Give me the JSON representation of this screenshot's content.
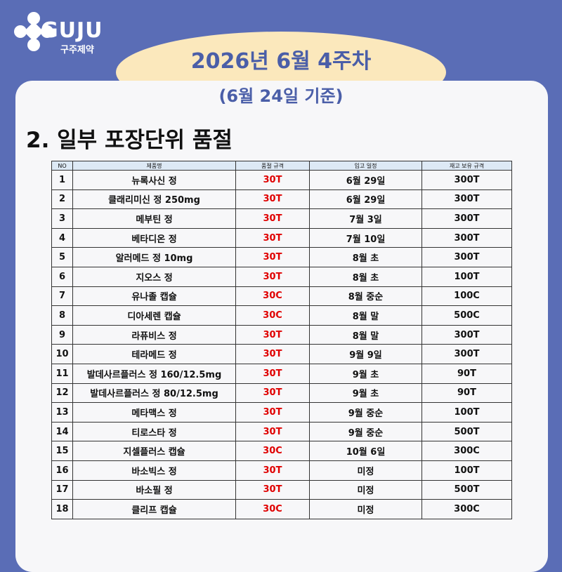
{
  "logo": {
    "name": "GUJU",
    "subtitle": "구주제약"
  },
  "header": {
    "title": "2026년 6월 4주차",
    "subtitle": "(6월 24일 기준)"
  },
  "section_title": "2. 일부 포장단위 품절",
  "table": {
    "columns": [
      "NO",
      "제품명",
      "품절 규격",
      "입고 일정",
      "재고 보유 규격"
    ],
    "rows": [
      [
        "1",
        "뉴록사신 정",
        "30T",
        "6월 29일",
        "300T"
      ],
      [
        "2",
        "클래리미신 정 250mg",
        "30T",
        "6월 29일",
        "300T"
      ],
      [
        "3",
        "메부틴 정",
        "30T",
        "7월 3일",
        "300T"
      ],
      [
        "4",
        "베타디온 정",
        "30T",
        "7월 10일",
        "300T"
      ],
      [
        "5",
        "알러메드 정 10mg",
        "30T",
        "8월 초",
        "300T"
      ],
      [
        "6",
        "지오스 정",
        "30T",
        "8월 초",
        "100T"
      ],
      [
        "7",
        "유나졸 캡슐",
        "30C",
        "8월 중순",
        "100C"
      ],
      [
        "8",
        "디아세렌 캡슐",
        "30C",
        "8월 말",
        "500C"
      ],
      [
        "9",
        "라퓨비스 정",
        "30T",
        "8월 말",
        "300T"
      ],
      [
        "10",
        "테라메드 정",
        "30T",
        "9월 9일",
        "300T"
      ],
      [
        "11",
        "발데사르플러스 정 160/12.5mg",
        "30T",
        "9월 초",
        "90T"
      ],
      [
        "12",
        "발데사르플러스 정 80/12.5mg",
        "30T",
        "9월 초",
        "90T"
      ],
      [
        "13",
        "메타맥스 정",
        "30T",
        "9월 중순",
        "100T"
      ],
      [
        "14",
        "티로스타 정",
        "30T",
        "9월 중순",
        "500T"
      ],
      [
        "15",
        "지셀플러스 캡슐",
        "30C",
        "10월 6일",
        "300C"
      ],
      [
        "16",
        "바소빅스 정",
        "30T",
        "미정",
        "100T"
      ],
      [
        "17",
        "바소필 정",
        "30T",
        "미정",
        "500T"
      ],
      [
        "18",
        "클리프 캡슐",
        "30C",
        "미정",
        "300C"
      ]
    ]
  }
}
